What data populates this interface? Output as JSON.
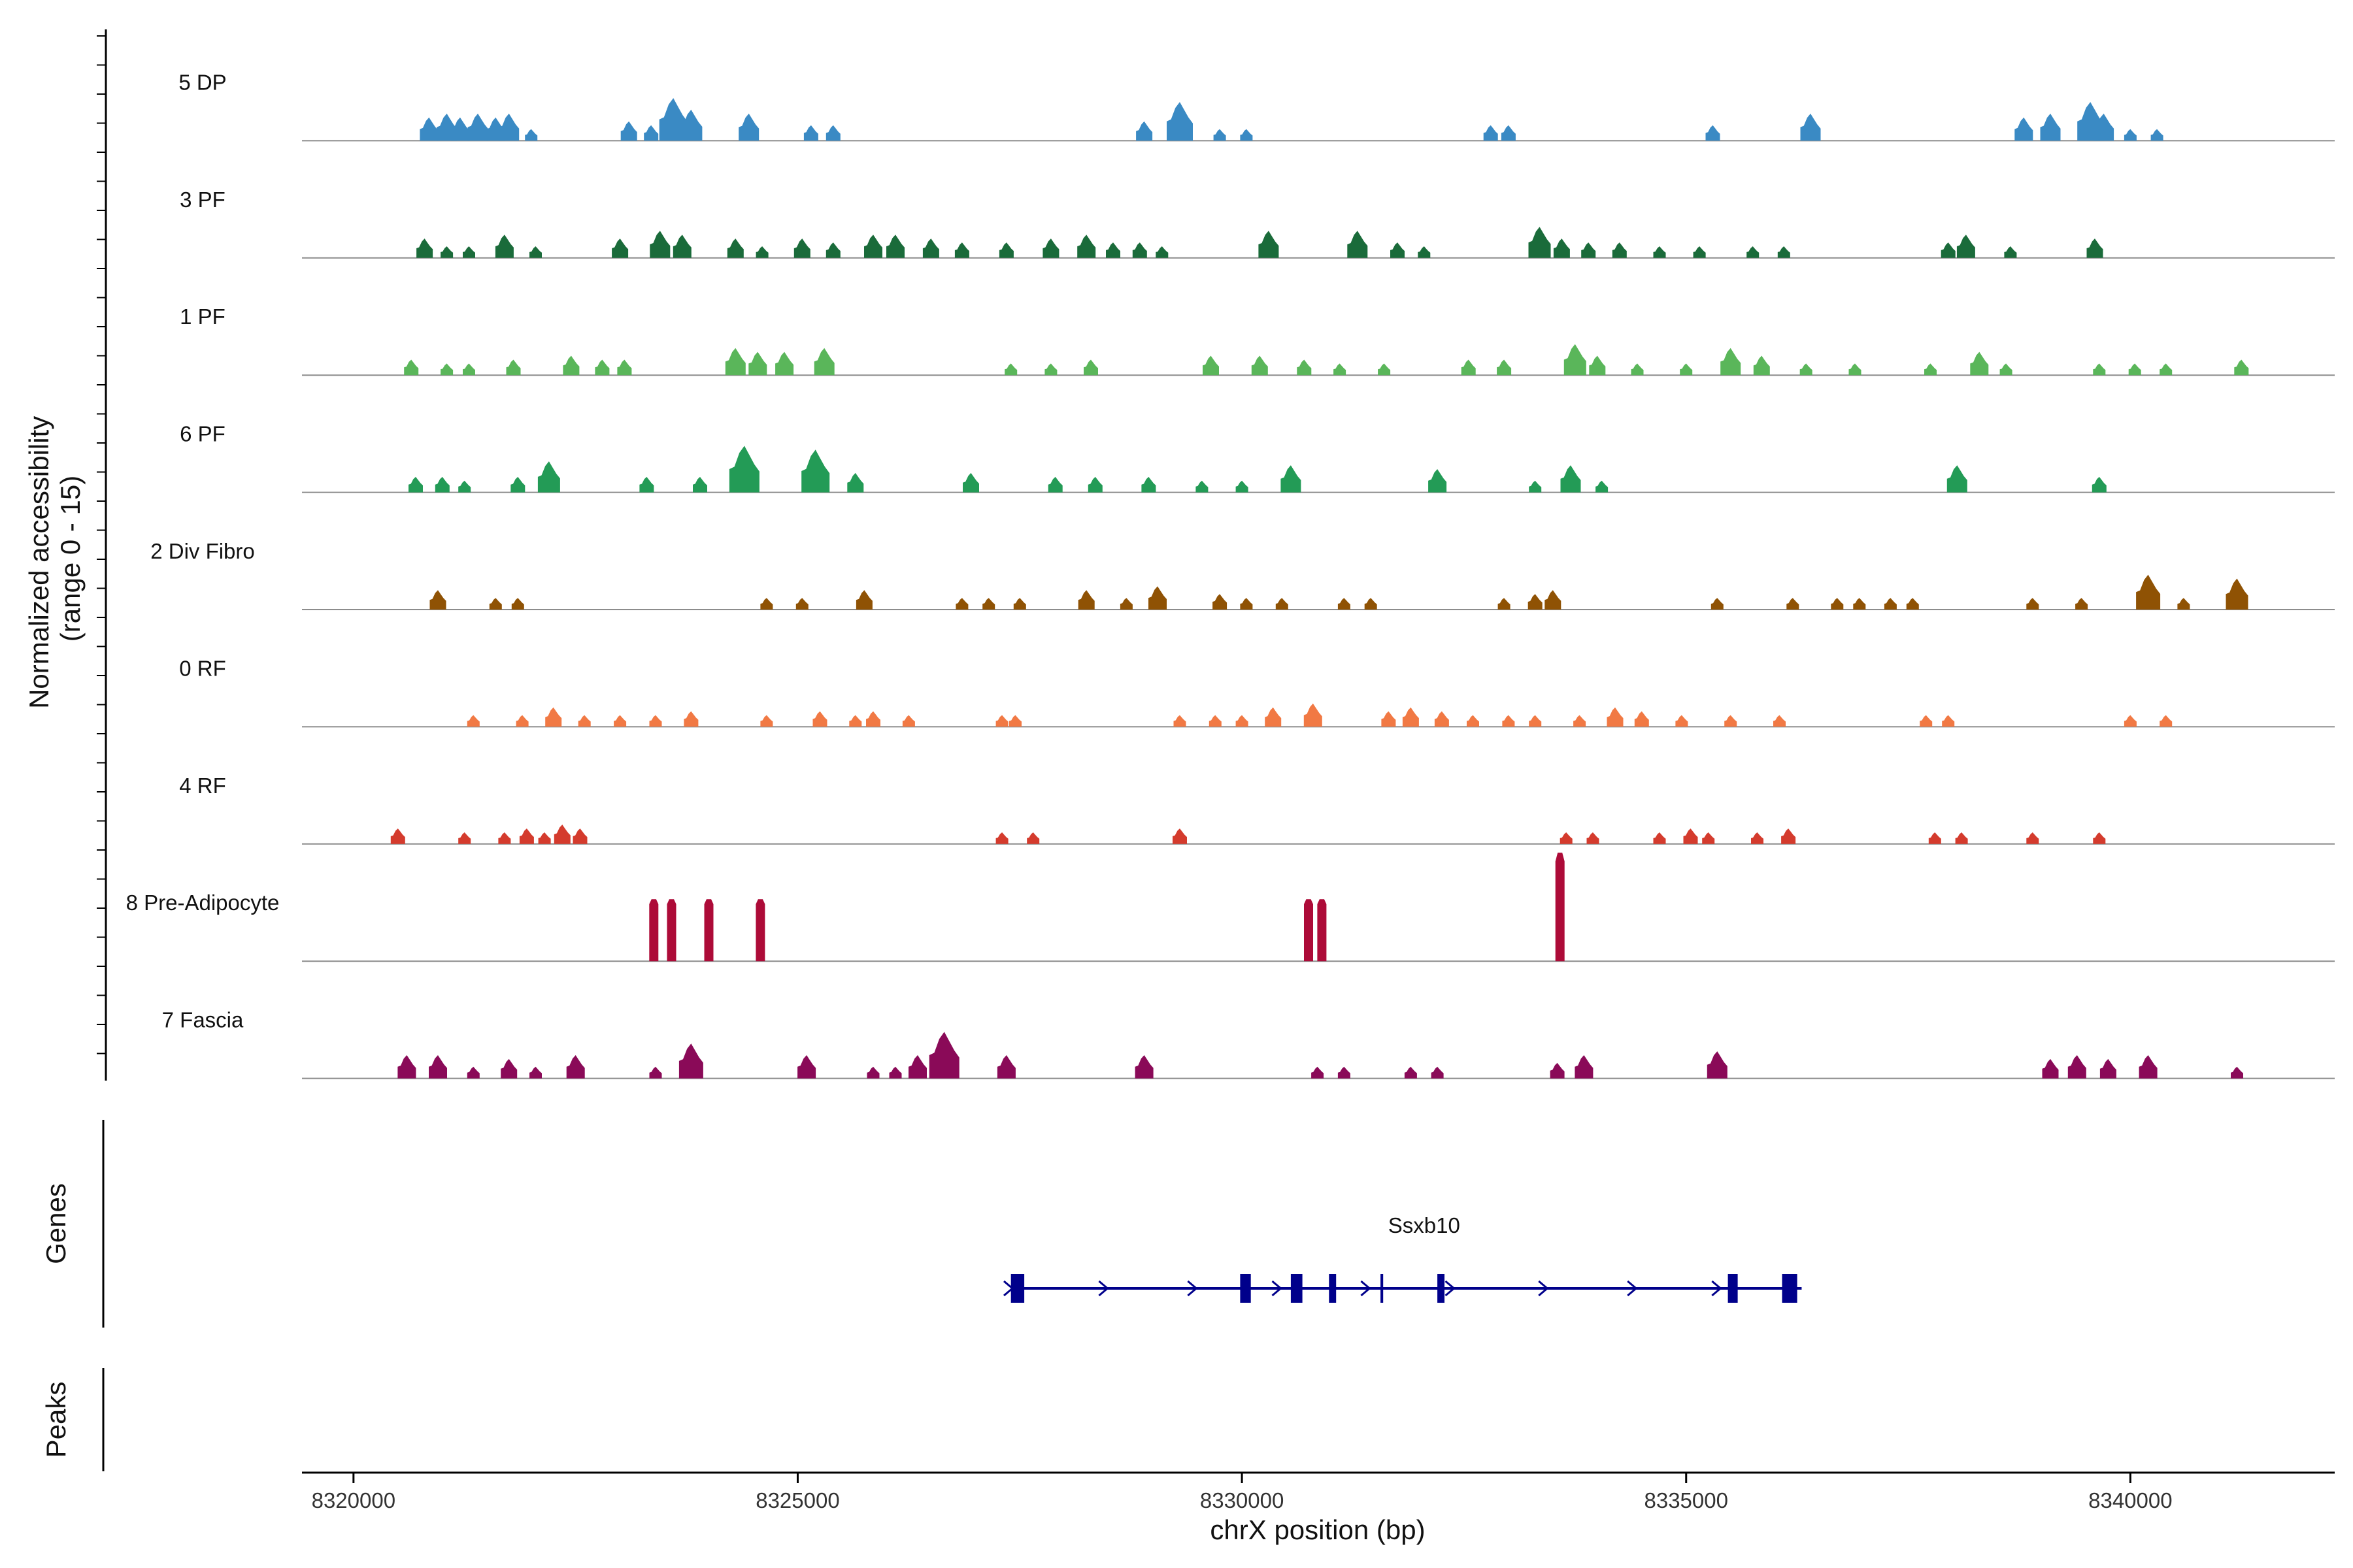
{
  "chart_data": {
    "type": "area",
    "title": "",
    "ylabel": "Normalized accessibility\n(range 0 - 15)",
    "ylabel_lines": [
      "Normalized accessibility",
      "(range 0 - 15)"
    ],
    "xlabel": "chrX position (bp)",
    "xlim": [
      8319420,
      8342300
    ],
    "ylim": [
      0,
      15
    ],
    "xticks": [
      8320000,
      8325000,
      8330000,
      8335000,
      8340000
    ],
    "xtick_labels": [
      "8320000",
      "8325000",
      "8330000",
      "8335000",
      "8340000"
    ],
    "tracks": [
      {
        "name": "5 DP",
        "color": "#3a8ac4",
        "peaks": [
          [
            8320850,
            3
          ],
          [
            8321050,
            3.5
          ],
          [
            8321200,
            3
          ],
          [
            8321400,
            3.5
          ],
          [
            8321600,
            3
          ],
          [
            8321750,
            3.5
          ],
          [
            8322000,
            1.5
          ],
          [
            8323100,
            2.5
          ],
          [
            8323350,
            2
          ],
          [
            8323600,
            5.5
          ],
          [
            8323800,
            4
          ],
          [
            8324450,
            3.5
          ],
          [
            8325150,
            2
          ],
          [
            8325400,
            2
          ],
          [
            8328900,
            2.5
          ],
          [
            8329300,
            5
          ],
          [
            8329750,
            1.5
          ],
          [
            8330050,
            1.5
          ],
          [
            8332800,
            2
          ],
          [
            8333000,
            2
          ],
          [
            8335300,
            2
          ],
          [
            8336400,
            3.5
          ],
          [
            8338800,
            3
          ],
          [
            8339100,
            3.5
          ],
          [
            8339550,
            5
          ],
          [
            8339700,
            3.5
          ],
          [
            8340000,
            1.5
          ],
          [
            8340300,
            1.5
          ]
        ]
      },
      {
        "name": "3 PF",
        "color": "#1a6b3a",
        "peaks": [
          [
            8320800,
            2.5
          ],
          [
            8321050,
            1.5
          ],
          [
            8321300,
            1.5
          ],
          [
            8321700,
            3
          ],
          [
            8322050,
            1.5
          ],
          [
            8323000,
            2.5
          ],
          [
            8323450,
            3.5
          ],
          [
            8323700,
            3
          ],
          [
            8324300,
            2.5
          ],
          [
            8324600,
            1.5
          ],
          [
            8325050,
            2.5
          ],
          [
            8325400,
            2
          ],
          [
            8325850,
            3
          ],
          [
            8326100,
            3
          ],
          [
            8326500,
            2.5
          ],
          [
            8326850,
            2
          ],
          [
            8327350,
            2
          ],
          [
            8327850,
            2.5
          ],
          [
            8328250,
            3
          ],
          [
            8328550,
            2
          ],
          [
            8328850,
            2
          ],
          [
            8329100,
            1.5
          ],
          [
            8330300,
            3.5
          ],
          [
            8331300,
            3.5
          ],
          [
            8331750,
            2
          ],
          [
            8332050,
            1.5
          ],
          [
            8333350,
            4
          ],
          [
            8333600,
            2.5
          ],
          [
            8333900,
            2
          ],
          [
            8334250,
            2
          ],
          [
            8334700,
            1.5
          ],
          [
            8335150,
            1.5
          ],
          [
            8335750,
            1.5
          ],
          [
            8336100,
            1.5
          ],
          [
            8337950,
            2
          ],
          [
            8338150,
            3
          ],
          [
            8338650,
            1.5
          ],
          [
            8339600,
            2.5
          ]
        ]
      },
      {
        "name": "1 PF",
        "color": "#5ab65a",
        "peaks": [
          [
            8320650,
            2
          ],
          [
            8321050,
            1.5
          ],
          [
            8321300,
            1.5
          ],
          [
            8321800,
            2
          ],
          [
            8322450,
            2.5
          ],
          [
            8322800,
            2
          ],
          [
            8323050,
            2
          ],
          [
            8324300,
            3.5
          ],
          [
            8324550,
            3
          ],
          [
            8324850,
            3
          ],
          [
            8325300,
            3.5
          ],
          [
            8327400,
            1.5
          ],
          [
            8327850,
            1.5
          ],
          [
            8328300,
            2
          ],
          [
            8329650,
            2.5
          ],
          [
            8330200,
            2.5
          ],
          [
            8330700,
            2
          ],
          [
            8331100,
            1.5
          ],
          [
            8331600,
            1.5
          ],
          [
            8332550,
            2
          ],
          [
            8332950,
            2
          ],
          [
            8333750,
            4
          ],
          [
            8334000,
            2.5
          ],
          [
            8334450,
            1.5
          ],
          [
            8335000,
            1.5
          ],
          [
            8335500,
            3.5
          ],
          [
            8335850,
            2.5
          ],
          [
            8336350,
            1.5
          ],
          [
            8336900,
            1.5
          ],
          [
            8337750,
            1.5
          ],
          [
            8338300,
            3
          ],
          [
            8338600,
            1.5
          ],
          [
            8339650,
            1.5
          ],
          [
            8340050,
            1.5
          ],
          [
            8340400,
            1.5
          ],
          [
            8341250,
            2
          ]
        ]
      },
      {
        "name": "6 PF",
        "color": "#239b56",
        "peaks": [
          [
            8320700,
            2
          ],
          [
            8321000,
            2
          ],
          [
            8321250,
            1.5
          ],
          [
            8321850,
            2
          ],
          [
            8322200,
            4
          ],
          [
            8323300,
            2
          ],
          [
            8323900,
            2
          ],
          [
            8324400,
            6
          ],
          [
            8325200,
            5.5
          ],
          [
            8325650,
            2.5
          ],
          [
            8326950,
            2.5
          ],
          [
            8327900,
            2
          ],
          [
            8328350,
            2
          ],
          [
            8328950,
            2
          ],
          [
            8329550,
            1.5
          ],
          [
            8330000,
            1.5
          ],
          [
            8330550,
            3.5
          ],
          [
            8332200,
            3
          ],
          [
            8333300,
            1.5
          ],
          [
            8333700,
            3.5
          ],
          [
            8334050,
            1.5
          ],
          [
            8338050,
            3.5
          ],
          [
            8339650,
            2
          ]
        ]
      },
      {
        "name": "2 Div Fibro",
        "color": "#8f5204",
        "peaks": [
          [
            8320950,
            2.5
          ],
          [
            8321600,
            1.5
          ],
          [
            8321850,
            1.5
          ],
          [
            8324650,
            1.5
          ],
          [
            8325050,
            1.5
          ],
          [
            8325750,
            2.5
          ],
          [
            8326850,
            1.5
          ],
          [
            8327150,
            1.5
          ],
          [
            8327500,
            1.5
          ],
          [
            8328250,
            2.5
          ],
          [
            8328700,
            1.5
          ],
          [
            8329050,
            3
          ],
          [
            8329750,
            2
          ],
          [
            8330050,
            1.5
          ],
          [
            8330450,
            1.5
          ],
          [
            8331150,
            1.5
          ],
          [
            8331450,
            1.5
          ],
          [
            8332950,
            1.5
          ],
          [
            8333300,
            2
          ],
          [
            8333500,
            2.5
          ],
          [
            8335350,
            1.5
          ],
          [
            8336200,
            1.5
          ],
          [
            8336700,
            1.5
          ],
          [
            8336950,
            1.5
          ],
          [
            8337300,
            1.5
          ],
          [
            8337550,
            1.5
          ],
          [
            8338900,
            1.5
          ],
          [
            8339450,
            1.5
          ],
          [
            8340200,
            4.5
          ],
          [
            8340600,
            1.5
          ],
          [
            8341200,
            4
          ]
        ]
      },
      {
        "name": "0 RF",
        "color": "#f17944",
        "peaks": [
          [
            8321350,
            1.5
          ],
          [
            8321900,
            1.5
          ],
          [
            8322250,
            2.5
          ],
          [
            8322600,
            1.5
          ],
          [
            8323000,
            1.5
          ],
          [
            8323400,
            1.5
          ],
          [
            8323800,
            2
          ],
          [
            8324650,
            1.5
          ],
          [
            8325250,
            2
          ],
          [
            8325650,
            1.5
          ],
          [
            8325850,
            2
          ],
          [
            8326250,
            1.5
          ],
          [
            8327300,
            1.5
          ],
          [
            8327450,
            1.5
          ],
          [
            8329300,
            1.5
          ],
          [
            8329700,
            1.5
          ],
          [
            8330000,
            1.5
          ],
          [
            8330350,
            2.5
          ],
          [
            8330800,
            3
          ],
          [
            8331650,
            2
          ],
          [
            8331900,
            2.5
          ],
          [
            8332250,
            2
          ],
          [
            8332600,
            1.5
          ],
          [
            8333000,
            1.5
          ],
          [
            8333300,
            1.5
          ],
          [
            8333800,
            1.5
          ],
          [
            8334200,
            2.5
          ],
          [
            8334500,
            2
          ],
          [
            8334950,
            1.5
          ],
          [
            8335500,
            1.5
          ],
          [
            8336050,
            1.5
          ],
          [
            8337700,
            1.5
          ],
          [
            8337950,
            1.5
          ],
          [
            8340000,
            1.5
          ],
          [
            8340400,
            1.5
          ]
        ]
      },
      {
        "name": "4 RF",
        "color": "#d43b2d",
        "peaks": [
          [
            8320500,
            2
          ],
          [
            8321250,
            1.5
          ],
          [
            8321700,
            1.5
          ],
          [
            8321950,
            2
          ],
          [
            8322150,
            1.5
          ],
          [
            8322350,
            2.5
          ],
          [
            8322550,
            2
          ],
          [
            8327300,
            1.5
          ],
          [
            8327650,
            1.5
          ],
          [
            8329300,
            2
          ],
          [
            8333650,
            1.5
          ],
          [
            8333950,
            1.5
          ],
          [
            8334700,
            1.5
          ],
          [
            8335050,
            2
          ],
          [
            8335250,
            1.5
          ],
          [
            8335800,
            1.5
          ],
          [
            8336150,
            2
          ],
          [
            8337800,
            1.5
          ],
          [
            8338100,
            1.5
          ],
          [
            8338900,
            1.5
          ],
          [
            8339650,
            1.5
          ]
        ]
      },
      {
        "name": "8 Pre-Adipocyte",
        "color": "#ad0b38",
        "peaks": [
          [
            8323380,
            8
          ],
          [
            8323580,
            8
          ],
          [
            8324000,
            8
          ],
          [
            8324580,
            8
          ],
          [
            8330750,
            8
          ],
          [
            8330900,
            8
          ],
          [
            8333580,
            14
          ]
        ]
      },
      {
        "name": "7 Fascia",
        "color": "#8a0a58",
        "peaks": [
          [
            8320600,
            3
          ],
          [
            8320950,
            3
          ],
          [
            8321350,
            1.5
          ],
          [
            8321750,
            2.5
          ],
          [
            8322050,
            1.5
          ],
          [
            8322500,
            3
          ],
          [
            8323400,
            1.5
          ],
          [
            8323800,
            4.5
          ],
          [
            8325100,
            3
          ],
          [
            8325850,
            1.5
          ],
          [
            8326100,
            1.5
          ],
          [
            8326350,
            3
          ],
          [
            8326650,
            6
          ],
          [
            8327350,
            3
          ],
          [
            8328900,
            3
          ],
          [
            8330850,
            1.5
          ],
          [
            8331150,
            1.5
          ],
          [
            8331900,
            1.5
          ],
          [
            8332200,
            1.5
          ],
          [
            8333550,
            2
          ],
          [
            8333850,
            3
          ],
          [
            8335350,
            3.5
          ],
          [
            8339100,
            2.5
          ],
          [
            8339400,
            3
          ],
          [
            8339750,
            2.5
          ],
          [
            8340200,
            3
          ],
          [
            8341200,
            1.5
          ]
        ]
      }
    ],
    "gene_panel_label": "Genes",
    "peaks_panel_label": "Peaks",
    "gene": {
      "name": "Ssxb10",
      "start": 8327400,
      "end": 8336300,
      "strand": "+",
      "color": "#00008b",
      "exons": [
        [
          8327400,
          8327550
        ],
        [
          8329980,
          8330100
        ],
        [
          8330550,
          8330680
        ],
        [
          8330980,
          8331060
        ],
        [
          8331560,
          8331590
        ],
        [
          8332200,
          8332280
        ],
        [
          8335470,
          8335580
        ],
        [
          8336080,
          8336250
        ]
      ]
    }
  }
}
